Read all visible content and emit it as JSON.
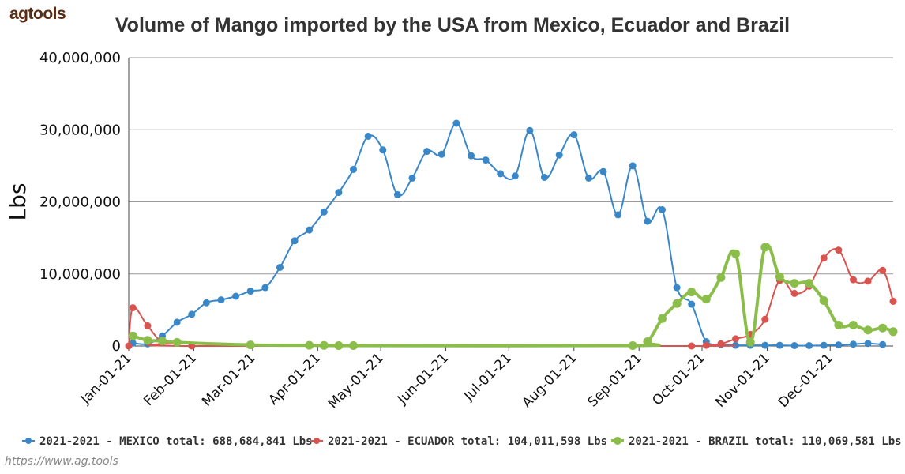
{
  "brand": "agtools",
  "credit": "https://www.ag.tools",
  "chart_data": {
    "type": "line",
    "title": "Volume of Mango imported by the USA from Mexico, Ecuador and Brazil",
    "ylabel": "Lbs",
    "xlabel": "",
    "ylim": [
      0,
      40000000
    ],
    "xlim": [
      "2021-01-01",
      "2021-12-31"
    ],
    "yticks": [
      "0",
      "10,000,000",
      "20,000,000",
      "30,000,000",
      "40,000,000"
    ],
    "yticks_values": [
      0,
      10000000,
      20000000,
      30000000,
      40000000
    ],
    "xticks": [
      "Jan-01-21",
      "Feb-01-21",
      "Mar-01-21",
      "Apr-01-21",
      "May-01-21",
      "Jun-01-21",
      "Jul-01-21",
      "Aug-01-21",
      "Sep-01-21",
      "Oct-01-21",
      "Nov-01-21",
      "Dec-01-21"
    ],
    "xticks_dates": [
      "2021-01-01",
      "2021-02-01",
      "2021-03-01",
      "2021-04-01",
      "2021-05-01",
      "2021-06-01",
      "2021-07-01",
      "2021-08-01",
      "2021-09-01",
      "2021-10-01",
      "2021-11-01",
      "2021-12-01"
    ],
    "grid": "horizontal",
    "legend_position": "bottom",
    "series": [
      {
        "name": "2021-2021 - MEXICO total: 688,684,841 Lbs",
        "color": "#3a87c8",
        "line_width": 2,
        "points": [
          [
            "2021-01-03",
            400000
          ],
          [
            "2021-01-10",
            300000
          ],
          [
            "2021-01-17",
            1400000
          ],
          [
            "2021-01-24",
            3300000
          ],
          [
            "2021-01-31",
            4400000
          ],
          [
            "2021-02-07",
            6000000
          ],
          [
            "2021-02-14",
            6400000
          ],
          [
            "2021-02-21",
            6900000
          ],
          [
            "2021-02-28",
            7600000
          ],
          [
            "2021-03-07",
            8100000
          ],
          [
            "2021-03-14",
            10900000
          ],
          [
            "2021-03-21",
            14600000
          ],
          [
            "2021-03-28",
            16100000
          ],
          [
            "2021-04-04",
            18600000
          ],
          [
            "2021-04-11",
            21300000
          ],
          [
            "2021-04-18",
            24500000
          ],
          [
            "2021-04-25",
            29100000
          ],
          [
            "2021-05-02",
            27200000
          ],
          [
            "2021-05-09",
            21000000
          ],
          [
            "2021-05-16",
            23300000
          ],
          [
            "2021-05-23",
            27000000
          ],
          [
            "2021-05-30",
            26600000
          ],
          [
            "2021-06-06",
            30900000
          ],
          [
            "2021-06-13",
            26400000
          ],
          [
            "2021-06-20",
            25800000
          ],
          [
            "2021-06-27",
            23900000
          ],
          [
            "2021-07-04",
            23600000
          ],
          [
            "2021-07-11",
            29900000
          ],
          [
            "2021-07-18",
            23400000
          ],
          [
            "2021-07-25",
            26500000
          ],
          [
            "2021-08-01",
            29300000
          ],
          [
            "2021-08-08",
            23300000
          ],
          [
            "2021-08-15",
            24200000
          ],
          [
            "2021-08-22",
            18200000
          ],
          [
            "2021-08-29",
            25000000
          ],
          [
            "2021-09-05",
            17300000
          ],
          [
            "2021-09-12",
            18900000
          ],
          [
            "2021-09-19",
            8100000
          ],
          [
            "2021-09-26",
            5800000
          ],
          [
            "2021-10-03",
            600000
          ],
          [
            "2021-10-10",
            200000
          ],
          [
            "2021-10-17",
            100000
          ],
          [
            "2021-10-24",
            100000
          ],
          [
            "2021-10-31",
            100000
          ],
          [
            "2021-11-07",
            100000
          ],
          [
            "2021-11-14",
            50000
          ],
          [
            "2021-11-21",
            50000
          ],
          [
            "2021-11-28",
            100000
          ],
          [
            "2021-12-05",
            150000
          ],
          [
            "2021-12-12",
            250000
          ],
          [
            "2021-12-19",
            350000
          ],
          [
            "2021-12-26",
            200000
          ]
        ]
      },
      {
        "name": "2021-2021 - ECUADOR total: 104,011,598 Lbs",
        "color": "#d9534f",
        "line_width": 2,
        "points": [
          [
            "2021-01-01",
            0
          ],
          [
            "2021-01-03",
            5300000
          ],
          [
            "2021-01-10",
            2800000
          ],
          [
            "2021-01-17",
            500000
          ],
          [
            "2021-01-24",
            400000
          ],
          [
            "2021-01-31",
            0
          ],
          [
            "2021-09-26",
            0
          ],
          [
            "2021-10-03",
            100000
          ],
          [
            "2021-10-10",
            300000
          ],
          [
            "2021-10-17",
            1000000
          ],
          [
            "2021-10-24",
            1600000
          ],
          [
            "2021-10-31",
            3700000
          ],
          [
            "2021-11-07",
            9100000
          ],
          [
            "2021-11-14",
            7300000
          ],
          [
            "2021-11-21",
            8300000
          ],
          [
            "2021-11-28",
            12200000
          ],
          [
            "2021-12-05",
            13300000
          ],
          [
            "2021-12-12",
            9200000
          ],
          [
            "2021-12-19",
            9000000
          ],
          [
            "2021-12-26",
            10500000
          ],
          [
            "2021-12-31",
            6200000
          ]
        ]
      },
      {
        "name": "2021-2021 - BRAZIL total: 110,069,581 Lbs",
        "color": "#8bbd4a",
        "line_width": 4,
        "points": [
          [
            "2021-01-03",
            1400000
          ],
          [
            "2021-01-10",
            800000
          ],
          [
            "2021-01-17",
            700000
          ],
          [
            "2021-01-24",
            500000
          ],
          [
            "2021-02-28",
            150000
          ],
          [
            "2021-03-28",
            100000
          ],
          [
            "2021-04-04",
            80000
          ],
          [
            "2021-04-11",
            60000
          ],
          [
            "2021-04-18",
            50000
          ],
          [
            "2021-08-29",
            50000
          ],
          [
            "2021-09-05",
            600000
          ],
          [
            "2021-09-12",
            3800000
          ],
          [
            "2021-09-19",
            5900000
          ],
          [
            "2021-09-26",
            7500000
          ],
          [
            "2021-10-03",
            6500000
          ],
          [
            "2021-10-10",
            9500000
          ],
          [
            "2021-10-17",
            12800000
          ],
          [
            "2021-10-24",
            500000
          ],
          [
            "2021-10-31",
            13700000
          ],
          [
            "2021-11-07",
            9600000
          ],
          [
            "2021-11-14",
            8700000
          ],
          [
            "2021-11-21",
            8700000
          ],
          [
            "2021-11-28",
            6300000
          ],
          [
            "2021-12-05",
            2900000
          ],
          [
            "2021-12-12",
            2900000
          ],
          [
            "2021-12-19",
            2200000
          ],
          [
            "2021-12-26",
            2500000
          ],
          [
            "2021-12-31",
            2000000
          ]
        ]
      }
    ]
  }
}
